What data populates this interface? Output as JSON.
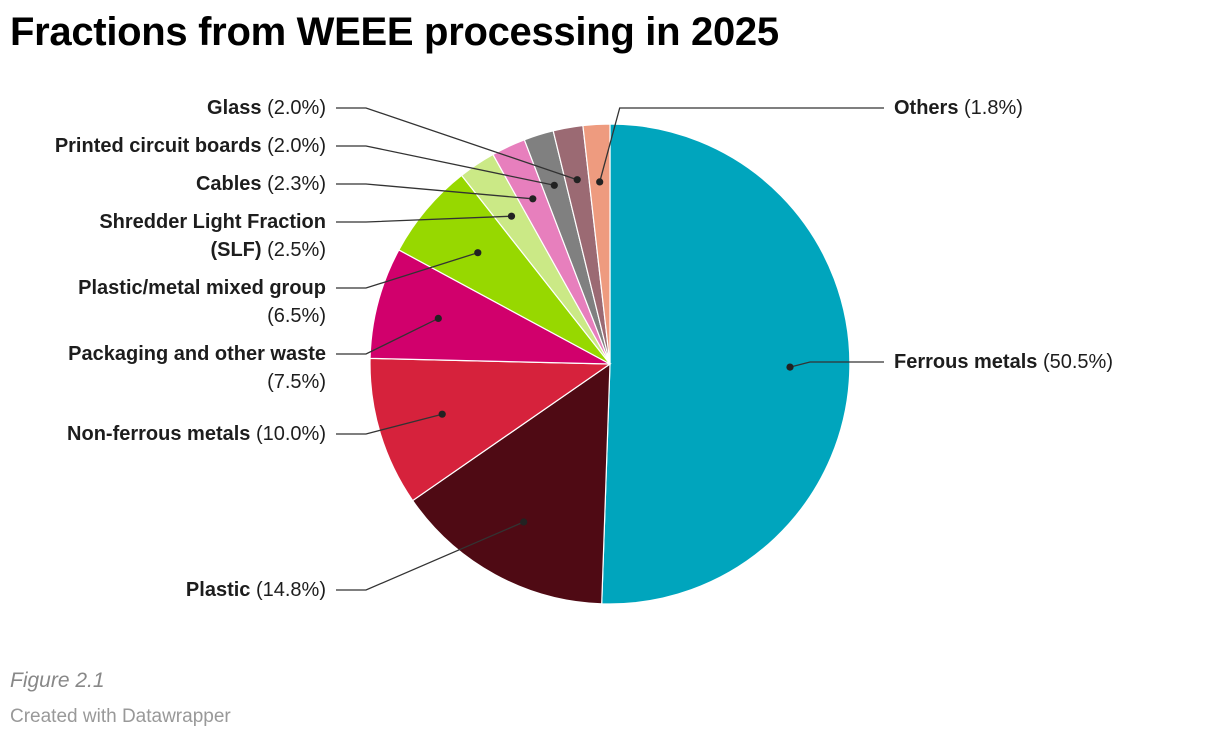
{
  "chart_data": {
    "type": "pie",
    "title": "Fractions from WEEE processing in 2025",
    "slices": [
      {
        "label": "Ferrous metals",
        "value": 50.5,
        "value_text": "(50.5%)",
        "color": "#00a5bd"
      },
      {
        "label": "Plastic",
        "value": 14.8,
        "value_text": "(14.8%)",
        "color": "#4f0a14"
      },
      {
        "label": "Non-ferrous metals",
        "value": 10.0,
        "value_text": "(10.0%)",
        "color": "#d6223c"
      },
      {
        "label": "Packaging and other waste",
        "value": 7.5,
        "value_text": "(7.5%)",
        "color": "#d1006c"
      },
      {
        "label": "Plastic/metal mixed group",
        "value": 6.5,
        "value_text": "(6.5%)",
        "color": "#97d800"
      },
      {
        "label": "Shredder Light Fraction (SLF)",
        "value": 2.5,
        "value_text": "(2.5%)",
        "color": "#cbe986"
      },
      {
        "label": "Cables",
        "value": 2.3,
        "value_text": "(2.3%)",
        "color": "#e77fbd"
      },
      {
        "label": "Printed circuit boards",
        "value": 2.0,
        "value_text": "(2.0%)",
        "color": "#808080"
      },
      {
        "label": "Glass",
        "value": 2.0,
        "value_text": "(2.0%)",
        "color": "#9b6a73"
      },
      {
        "label": "Others",
        "value": 1.8,
        "value_text": "(1.8%)",
        "color": "#ee9b7f"
      }
    ],
    "start": "12 o'clock",
    "direction": "clockwise",
    "legend": "none (direct labels)"
  },
  "figure_caption": "Figure 2.1",
  "source_note": "Created with Datawrapper"
}
